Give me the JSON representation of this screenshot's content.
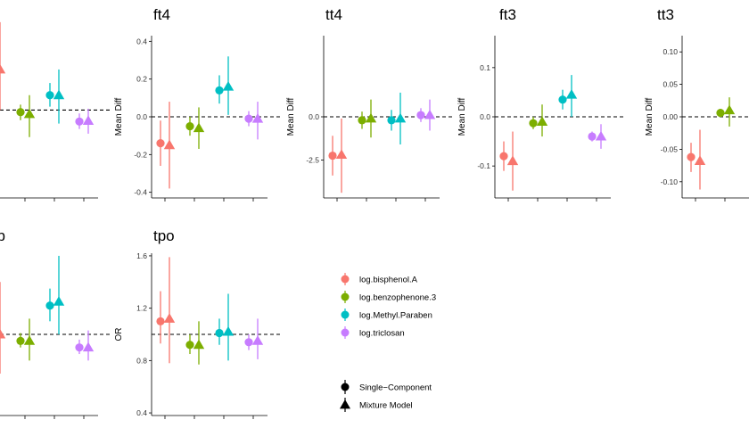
{
  "chart_data": {
    "type": "scatter",
    "legend": {
      "placement": "right",
      "colors": [
        {
          "name": "log.bisphenol.A",
          "color": "#F8766D"
        },
        {
          "name": "log.benzophenone.3",
          "color": "#7CAE00"
        },
        {
          "name": "log.Methyl.Paraben",
          "color": "#00BFC4"
        },
        {
          "name": "log.triclosan",
          "color": "#C77CFF"
        }
      ],
      "shapes": [
        {
          "name": "Single−Component",
          "shape": "circle"
        },
        {
          "name": "Mixture Model",
          "shape": "triangle"
        }
      ]
    },
    "panels": [
      {
        "id": "p0",
        "title": "",
        "ylabel": "",
        "ylim": [
          -1.3,
          1.1
        ],
        "reference": 0,
        "yticks": [],
        "points": [
          {
            "chem": 0,
            "model": 0,
            "est": null,
            "lo": null,
            "hi": null
          },
          {
            "chem": 0,
            "model": 1,
            "est": 0.6,
            "lo": 0.0,
            "hi": 1.3
          },
          {
            "chem": 1,
            "model": 0,
            "est": -0.03,
            "lo": -0.15,
            "hi": 0.08
          },
          {
            "chem": 1,
            "model": 1,
            "est": -0.06,
            "lo": -0.4,
            "hi": 0.22
          },
          {
            "chem": 2,
            "model": 0,
            "est": 0.22,
            "lo": 0.05,
            "hi": 0.4
          },
          {
            "chem": 2,
            "model": 1,
            "est": 0.22,
            "lo": -0.2,
            "hi": 0.6
          },
          {
            "chem": 3,
            "model": 0,
            "est": -0.17,
            "lo": -0.28,
            "hi": -0.05
          },
          {
            "chem": 3,
            "model": 1,
            "est": -0.16,
            "lo": -0.35,
            "hi": 0.02
          }
        ]
      },
      {
        "id": "ft4",
        "title": "ft4",
        "ylabel": "Mean Diff",
        "ylim": [
          -0.43,
          0.43
        ],
        "reference": 0,
        "yticks": [
          {
            "v": 0.4,
            "t": "0.4"
          },
          {
            "v": 0.2,
            "t": "0.2"
          },
          {
            "v": 0.0,
            "t": "0.0"
          },
          {
            "v": -0.2,
            "t": "-0.2"
          },
          {
            "v": -0.4,
            "t": "-0.4"
          }
        ],
        "points": [
          {
            "chem": 0,
            "model": 0,
            "est": -0.14,
            "lo": -0.26,
            "hi": -0.02
          },
          {
            "chem": 0,
            "model": 1,
            "est": -0.15,
            "lo": -0.38,
            "hi": 0.08
          },
          {
            "chem": 1,
            "model": 0,
            "est": -0.05,
            "lo": -0.1,
            "hi": 0.0
          },
          {
            "chem": 1,
            "model": 1,
            "est": -0.06,
            "lo": -0.17,
            "hi": 0.05
          },
          {
            "chem": 2,
            "model": 0,
            "est": 0.14,
            "lo": 0.07,
            "hi": 0.22
          },
          {
            "chem": 2,
            "model": 1,
            "est": 0.16,
            "lo": 0.01,
            "hi": 0.32
          },
          {
            "chem": 3,
            "model": 0,
            "est": -0.01,
            "lo": -0.05,
            "hi": 0.03
          },
          {
            "chem": 3,
            "model": 1,
            "est": -0.01,
            "lo": -0.12,
            "hi": 0.08
          }
        ]
      },
      {
        "id": "tt4",
        "title": "tt4",
        "ylabel": "Mean Diff",
        "ylim": [
          -4.7,
          4.7
        ],
        "reference": 0,
        "yticks": [
          {
            "v": 0.0,
            "t": "0.0"
          },
          {
            "v": -2.5,
            "t": "-2.5"
          }
        ],
        "points": [
          {
            "chem": 0,
            "model": 0,
            "est": -2.25,
            "lo": -3.4,
            "hi": -1.1
          },
          {
            "chem": 0,
            "model": 1,
            "est": -2.2,
            "lo": -4.4,
            "hi": -0.1
          },
          {
            "chem": 1,
            "model": 0,
            "est": -0.2,
            "lo": -0.7,
            "hi": 0.3
          },
          {
            "chem": 1,
            "model": 1,
            "est": -0.1,
            "lo": -1.2,
            "hi": 1.0
          },
          {
            "chem": 2,
            "model": 0,
            "est": -0.2,
            "lo": -0.8,
            "hi": 0.4
          },
          {
            "chem": 2,
            "model": 1,
            "est": -0.1,
            "lo": -1.6,
            "hi": 1.4
          },
          {
            "chem": 3,
            "model": 0,
            "est": 0.1,
            "lo": -0.3,
            "hi": 0.5
          },
          {
            "chem": 3,
            "model": 1,
            "est": 0.1,
            "lo": -0.8,
            "hi": 1.0
          }
        ]
      },
      {
        "id": "ft3",
        "title": "ft3",
        "ylabel": "Mean Diff",
        "ylim": [
          -0.165,
          0.165
        ],
        "reference": 0,
        "yticks": [
          {
            "v": 0.1,
            "t": "0.1"
          },
          {
            "v": 0.0,
            "t": "0.0"
          },
          {
            "v": -0.1,
            "t": "-0.1"
          }
        ],
        "points": [
          {
            "chem": 0,
            "model": 0,
            "est": -0.08,
            "lo": -0.11,
            "hi": -0.05
          },
          {
            "chem": 0,
            "model": 1,
            "est": -0.09,
            "lo": -0.15,
            "hi": -0.03
          },
          {
            "chem": 1,
            "model": 0,
            "est": -0.013,
            "lo": -0.025,
            "hi": 0.0
          },
          {
            "chem": 1,
            "model": 1,
            "est": -0.01,
            "lo": -0.04,
            "hi": 0.025
          },
          {
            "chem": 2,
            "model": 0,
            "est": 0.035,
            "lo": 0.015,
            "hi": 0.055
          },
          {
            "chem": 2,
            "model": 1,
            "est": 0.045,
            "lo": 0.0,
            "hi": 0.085
          },
          {
            "chem": 3,
            "model": 0,
            "est": -0.04,
            "lo": -0.05,
            "hi": -0.03
          },
          {
            "chem": 3,
            "model": 1,
            "est": -0.04,
            "lo": -0.065,
            "hi": -0.015
          }
        ]
      },
      {
        "id": "tt3",
        "title": "tt3",
        "ylabel": "Mean Diff",
        "ylim": [
          -0.125,
          0.125
        ],
        "reference": 0,
        "yticks": [
          {
            "v": 0.1,
            "t": "0.10"
          },
          {
            "v": 0.05,
            "t": "0.05"
          },
          {
            "v": 0.0,
            "t": "0.00"
          },
          {
            "v": -0.05,
            "t": "-0.05"
          },
          {
            "v": -0.1,
            "t": "-0.10"
          }
        ],
        "points": [
          {
            "chem": 0,
            "model": 0,
            "est": -0.062,
            "lo": -0.085,
            "hi": -0.04
          },
          {
            "chem": 0,
            "model": 1,
            "est": -0.068,
            "lo": -0.112,
            "hi": -0.02
          },
          {
            "chem": 1,
            "model": 0,
            "est": 0.006,
            "lo": 0.0,
            "hi": 0.012
          },
          {
            "chem": 1,
            "model": 1,
            "est": 0.01,
            "lo": -0.015,
            "hi": 0.03
          },
          {
            "chem": 2,
            "model": 0,
            "est": null,
            "lo": null,
            "hi": null
          },
          {
            "chem": 2,
            "model": 1,
            "est": null,
            "lo": null,
            "hi": null
          },
          {
            "chem": 3,
            "model": 0,
            "est": null,
            "lo": null,
            "hi": null
          },
          {
            "chem": 3,
            "model": 1,
            "est": null,
            "lo": null,
            "hi": null
          }
        ]
      },
      {
        "id": "p5",
        "title": "ab",
        "ylabel": "",
        "ylim": [
          0.38,
          1.62
        ],
        "reference": 1,
        "yticks": [],
        "points": [
          {
            "chem": 0,
            "model": 0,
            "est": null,
            "lo": null,
            "hi": null
          },
          {
            "chem": 0,
            "model": 1,
            "est": 1.0,
            "lo": 0.7,
            "hi": 1.4
          },
          {
            "chem": 1,
            "model": 0,
            "est": 0.95,
            "lo": 0.9,
            "hi": 1.01
          },
          {
            "chem": 1,
            "model": 1,
            "est": 0.95,
            "lo": 0.8,
            "hi": 1.12
          },
          {
            "chem": 2,
            "model": 0,
            "est": 1.22,
            "lo": 1.1,
            "hi": 1.35
          },
          {
            "chem": 2,
            "model": 1,
            "est": 1.25,
            "lo": 1.0,
            "hi": 1.6
          },
          {
            "chem": 3,
            "model": 0,
            "est": 0.9,
            "lo": 0.85,
            "hi": 0.96
          },
          {
            "chem": 3,
            "model": 1,
            "est": 0.9,
            "lo": 0.8,
            "hi": 1.03
          }
        ]
      },
      {
        "id": "tpo",
        "title": "tpo",
        "ylabel": "OR",
        "ylim": [
          0.38,
          1.62
        ],
        "reference": 1,
        "yticks": [
          {
            "v": 1.6,
            "t": "1.6"
          },
          {
            "v": 1.2,
            "t": "1.2"
          },
          {
            "v": 0.8,
            "t": "0.8"
          },
          {
            "v": 0.4,
            "t": "0.4"
          }
        ],
        "points": [
          {
            "chem": 0,
            "model": 0,
            "est": 1.1,
            "lo": 0.93,
            "hi": 1.33
          },
          {
            "chem": 0,
            "model": 1,
            "est": 1.12,
            "lo": 0.78,
            "hi": 1.59
          },
          {
            "chem": 1,
            "model": 0,
            "est": 0.92,
            "lo": 0.85,
            "hi": 1.0
          },
          {
            "chem": 1,
            "model": 1,
            "est": 0.92,
            "lo": 0.77,
            "hi": 1.1
          },
          {
            "chem": 2,
            "model": 0,
            "est": 1.01,
            "lo": 0.92,
            "hi": 1.12
          },
          {
            "chem": 2,
            "model": 1,
            "est": 1.02,
            "lo": 0.8,
            "hi": 1.31
          },
          {
            "chem": 3,
            "model": 0,
            "est": 0.94,
            "lo": 0.88,
            "hi": 1.0
          },
          {
            "chem": 3,
            "model": 1,
            "est": 0.95,
            "lo": 0.81,
            "hi": 1.12
          }
        ]
      }
    ]
  }
}
